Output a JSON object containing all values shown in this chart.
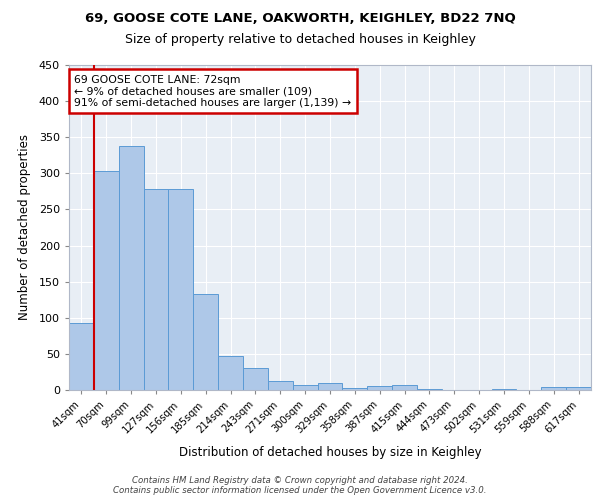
{
  "title1": "69, GOOSE COTE LANE, OAKWORTH, KEIGHLEY, BD22 7NQ",
  "title2": "Size of property relative to detached houses in Keighley",
  "xlabel": "Distribution of detached houses by size in Keighley",
  "ylabel": "Number of detached properties",
  "footer": "Contains HM Land Registry data © Crown copyright and database right 2024.\nContains public sector information licensed under the Open Government Licence v3.0.",
  "bin_labels": [
    "41sqm",
    "70sqm",
    "99sqm",
    "127sqm",
    "156sqm",
    "185sqm",
    "214sqm",
    "243sqm",
    "271sqm",
    "300sqm",
    "329sqm",
    "358sqm",
    "387sqm",
    "415sqm",
    "444sqm",
    "473sqm",
    "502sqm",
    "531sqm",
    "559sqm",
    "588sqm",
    "617sqm"
  ],
  "bar_values": [
    93,
    303,
    338,
    279,
    279,
    133,
    47,
    30,
    12,
    7,
    10,
    3,
    5,
    7,
    2,
    0,
    0,
    2,
    0,
    4,
    4
  ],
  "bar_color": "#aec8e8",
  "bar_edge_color": "#5b9bd5",
  "vline_x": 0.5,
  "annotation_text": "69 GOOSE COTE LANE: 72sqm\n← 9% of detached houses are smaller (109)\n91% of semi-detached houses are larger (1,139) →",
  "annotation_box_color": "#ffffff",
  "annotation_box_edge_color": "#cc0000",
  "vline_color": "#cc0000",
  "ylim": [
    0,
    450
  ],
  "yticks": [
    0,
    50,
    100,
    150,
    200,
    250,
    300,
    350,
    400,
    450
  ],
  "background_color": "#e8eef5",
  "grid_color": "#ffffff"
}
